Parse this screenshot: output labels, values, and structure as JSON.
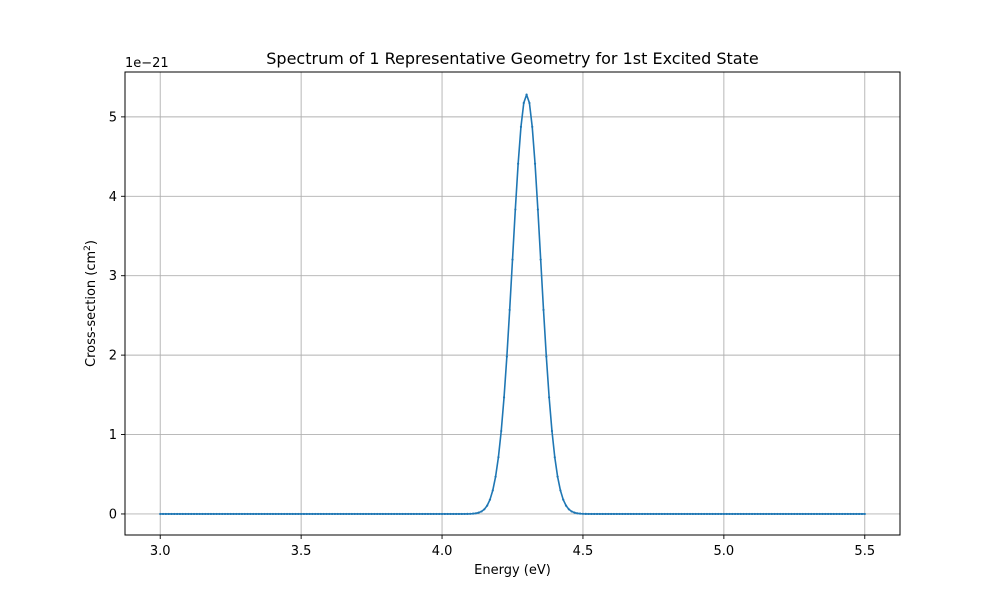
{
  "chart_data": {
    "type": "line",
    "title": "Spectrum of 1 Representative Geometry for 1st Excited State",
    "xlabel": "Energy (eV)",
    "ylabel_text": "Cross-section (cm",
    "ylabel_sup": "2",
    "ylabel_close": ")",
    "y_offset_label": "1e−21",
    "xlim": [
      2.875,
      5.625
    ],
    "ylim": [
      -0.265,
      5.565
    ],
    "x_scale_note": "y values in units of 1e-21 cm^2",
    "xticks": [
      3.0,
      3.5,
      4.0,
      4.5,
      5.0,
      5.5
    ],
    "xtick_labels": [
      "3.0",
      "3.5",
      "4.0",
      "4.5",
      "5.0",
      "5.5"
    ],
    "yticks": [
      0,
      1,
      2,
      3,
      4,
      5
    ],
    "ytick_labels": [
      "0",
      "1",
      "2",
      "3",
      "4",
      "5"
    ],
    "grid": true,
    "series": [
      {
        "color": "#1f77b4",
        "marker": "point",
        "peak_x": 4.3,
        "peak_y": 5.28,
        "sigma": 0.05,
        "x_start": 3.0,
        "x_end": 5.5,
        "x_step": 0.01,
        "description_values": "Gaussian band sampled every 0.01 eV from 3.0 to 5.5 eV"
      }
    ]
  },
  "colors": {
    "line": "#1f77b4",
    "grid": "#b0b0b0",
    "axes": "#000000"
  }
}
